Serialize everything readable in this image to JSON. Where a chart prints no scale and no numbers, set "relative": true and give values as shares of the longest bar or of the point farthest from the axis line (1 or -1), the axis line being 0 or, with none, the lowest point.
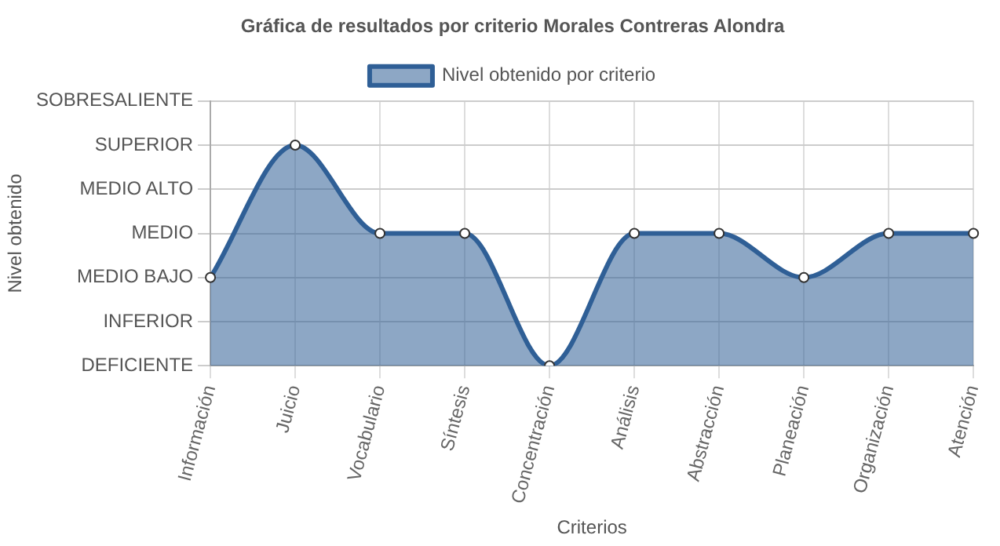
{
  "chart_data": {
    "type": "area",
    "title": "Gráfica de resultados por criterio Morales Contreras Alondra",
    "xlabel": "Criterios",
    "annotations": [
      "Nivel obtenido"
    ],
    "categories": [
      "Información",
      "Juicio",
      "Vocabulario",
      "Síntesis",
      "Concentración",
      "Análisis",
      "Abstracción",
      "Planeación",
      "Organización",
      "Atención"
    ],
    "series": [
      {
        "name": "Nivel obtenido por criterio",
        "color": "#2f5f96",
        "values": [
          0.4,
          1,
          0.6,
          0.6,
          0,
          0.6,
          0.6,
          0.4,
          0.6,
          0.6
        ]
      }
    ],
    "relative": true,
    "y_categories": [
      "SOBRESALIENTE",
      "SUPERIOR",
      "MEDIO ALTO",
      "MEDIO",
      "MEDIO BAJO",
      "INFERIOR",
      "DEFICIENTE"
    ],
    "grid": true,
    "legend": "top",
    "marker": "circle",
    "line_style": "solid"
  }
}
